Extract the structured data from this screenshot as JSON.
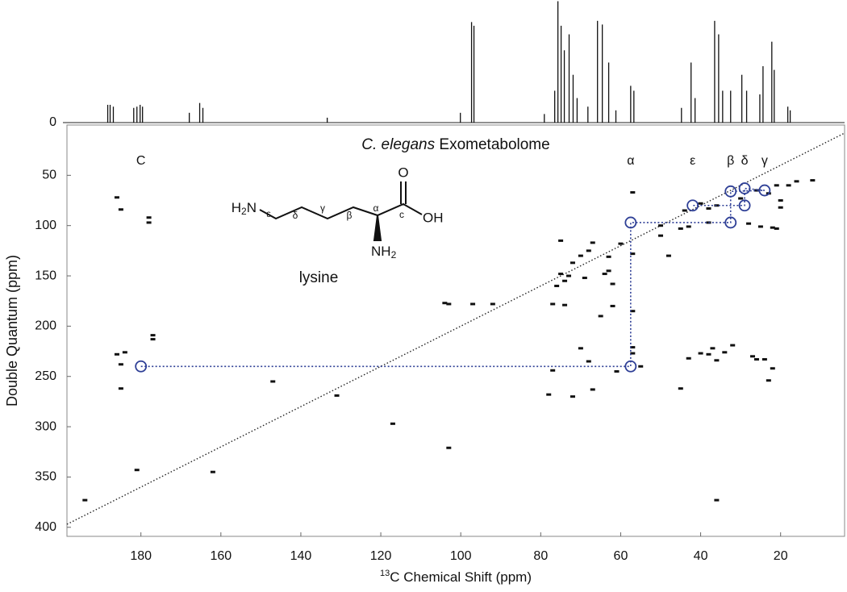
{
  "chart_data": {
    "type": "nmr2d",
    "title": {
      "italic": "C. elegans",
      "text": "Exometabolome"
    },
    "x_label": {
      "superscript": "13",
      "text": "C Chemical Shift (ppm)"
    },
    "y_label": "Double Quantum (ppm)",
    "xlim": [
      198.5,
      4
    ],
    "ylim": [
      0,
      409
    ],
    "xticks": [
      180,
      160,
      140,
      120,
      100,
      80,
      60,
      40,
      20
    ],
    "yticks": [
      50,
      100,
      150,
      200,
      250,
      300,
      350,
      400
    ],
    "peak_color": "#111111",
    "spectrum": {
      "ylim": [
        0,
        100
      ],
      "yticks": [
        0
      ],
      "x": [
        188.3,
        187.7,
        186.9,
        181.8,
        181.0,
        180.2,
        179.6,
        167.9,
        165.3,
        164.5,
        133.4,
        100.1,
        97.3,
        96.7,
        79.1,
        76.5,
        75.7,
        74.9,
        74.1,
        72.9,
        71.9,
        70.9,
        68.2,
        65.8,
        64.6,
        63.0,
        61.2,
        57.5,
        56.7,
        44.8,
        42.4,
        41.4,
        36.5,
        35.5,
        34.5,
        32.5,
        29.7,
        28.5,
        25.2,
        24.4,
        22.2,
        21.6,
        18.2,
        17.6
      ],
      "values": [
        14.5,
        14.5,
        13,
        12,
        13,
        14.5,
        13,
        8,
        16,
        12,
        4,
        8,
        82,
        79,
        7,
        26,
        99,
        79,
        59,
        72,
        39,
        20,
        13,
        83,
        80,
        49,
        10,
        30,
        26,
        12,
        49,
        20,
        83,
        72,
        26,
        26,
        39,
        26,
        23,
        46,
        66,
        43,
        13,
        10
      ]
    },
    "cross_peaks": {
      "x": [
        186,
        185,
        186,
        185,
        184,
        185,
        178,
        178,
        177,
        177,
        194,
        181,
        162,
        147,
        103,
        104,
        97,
        92,
        75,
        74,
        76,
        73,
        69,
        64,
        62,
        63,
        77,
        74,
        70,
        75,
        67,
        68,
        63,
        72,
        60,
        57,
        57,
        57,
        57,
        57,
        62,
        65,
        70,
        68,
        61,
        67,
        78,
        72,
        77,
        103,
        117,
        131,
        45,
        43,
        40,
        38,
        37,
        36,
        36,
        34,
        32,
        27,
        26,
        24,
        23,
        22,
        50,
        50,
        48,
        55,
        45,
        43,
        38,
        28,
        25,
        22,
        21,
        38,
        36,
        40,
        30,
        26,
        23,
        21,
        18,
        16,
        12,
        20,
        20,
        44
      ],
      "y": [
        72,
        84,
        228,
        238,
        226,
        262,
        92,
        97,
        209,
        213,
        373,
        343,
        345,
        255,
        178,
        177,
        178,
        178,
        148,
        155,
        160,
        150,
        152,
        148,
        158,
        145,
        178,
        179,
        130,
        115,
        117,
        125,
        131,
        137,
        118,
        221,
        227,
        185,
        128,
        67,
        180,
        190,
        222,
        235,
        245,
        263,
        268,
        270,
        244,
        321,
        297,
        269,
        262,
        232,
        227,
        228,
        222,
        234,
        373,
        226,
        219,
        230,
        233,
        233,
        254,
        242,
        100,
        110,
        130,
        240,
        103,
        101,
        97,
        98,
        101,
        102,
        103,
        83,
        80,
        78,
        73,
        65,
        68,
        60,
        60,
        56,
        55,
        75,
        82,
        85
      ]
    },
    "lysine_points": {
      "color": "#2e3f96",
      "x": [
        180,
        57.5,
        57.5,
        32.5,
        32.5,
        24,
        29,
        29,
        42
      ],
      "y": [
        240,
        240,
        97,
        97,
        66,
        65,
        63,
        80,
        80
      ],
      "labels": [
        "C",
        "α",
        null,
        "β",
        null,
        "γ",
        "δ",
        null,
        "ε"
      ]
    },
    "structure": {
      "name": "lysine",
      "amine": [
        "H",
        "2",
        "N"
      ],
      "chain": [
        "ε",
        "δ",
        "γ",
        "β",
        "α"
      ],
      "carbon": "c",
      "carbonyl": "O",
      "hydroxyl": "OH",
      "alpha_amine": [
        "NH",
        "2"
      ]
    }
  }
}
